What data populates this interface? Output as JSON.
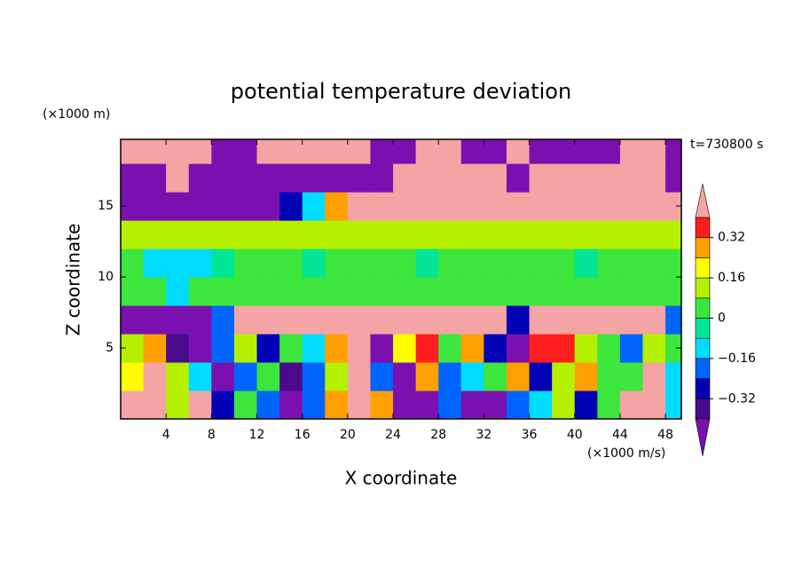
{
  "chart_data": {
    "type": "contour",
    "title": "potential temperature deviation",
    "x_label": "X coordinate",
    "x_unit": "(×1000 m/s)",
    "y_label": "Z coordinate",
    "y_unit": "(×1000 m)",
    "annotation": "t=730800 s",
    "xlim": [
      0,
      49.4
    ],
    "ylim": [
      0,
      19.7
    ],
    "xticks": [
      4,
      8,
      12,
      16,
      20,
      24,
      28,
      32,
      36,
      40,
      44,
      48
    ],
    "yticks": [
      5,
      10,
      15
    ],
    "x": [
      1,
      3,
      5,
      7,
      9,
      11,
      13,
      15,
      17,
      19,
      21,
      23,
      25,
      27,
      29,
      31,
      33,
      35,
      37,
      39,
      41,
      43,
      45,
      47,
      49
    ],
    "y": [
      1,
      3,
      5,
      7,
      9,
      11,
      13,
      15,
      17,
      19
    ],
    "z": [
      [
        0.5,
        0.5,
        0.1,
        0.5,
        -0.3,
        0.0,
        -0.2,
        -0.45,
        -0.2,
        0.3,
        0.5,
        0.3,
        -0.45,
        -0.45,
        -0.2,
        -0.45,
        -0.45,
        -0.2,
        -0.1,
        0.1,
        -0.3,
        0.0,
        0.5,
        0.5,
        -0.1
      ],
      [
        0.2,
        0.5,
        0.1,
        -0.1,
        -0.45,
        -0.2,
        0.0,
        -0.35,
        -0.2,
        0.1,
        0.5,
        -0.2,
        -0.45,
        0.3,
        -0.2,
        -0.1,
        0.0,
        0.3,
        -0.3,
        0.1,
        0.3,
        0.0,
        0.0,
        0.5,
        -0.1
      ],
      [
        0.1,
        0.3,
        -0.35,
        -0.45,
        -0.2,
        0.1,
        -0.3,
        0.0,
        -0.1,
        0.3,
        0.5,
        -0.45,
        0.2,
        0.35,
        0.0,
        0.3,
        -0.3,
        -0.45,
        0.35,
        0.35,
        0.1,
        0.0,
        -0.2,
        0.1,
        0.0
      ],
      [
        -0.45,
        -0.45,
        -0.45,
        -0.45,
        -0.2,
        0.5,
        0.5,
        0.5,
        0.5,
        0.5,
        0.5,
        0.5,
        0.5,
        0.5,
        0.5,
        0.5,
        0.5,
        -0.3,
        0.5,
        0.5,
        0.5,
        0.5,
        0.5,
        0.5,
        -0.2
      ],
      [
        0.05,
        0.05,
        -0.1,
        0.0,
        0.05,
        0.0,
        0.05,
        0.0,
        0.05,
        0.0,
        0.05,
        0.0,
        0.05,
        0.0,
        0.05,
        0.0,
        0.05,
        0.0,
        0.05,
        0.0,
        0.05,
        0.0,
        0.05,
        0.0,
        0.05
      ],
      [
        0.0,
        -0.1,
        -0.12,
        -0.1,
        -0.05,
        0.0,
        0.05,
        0.0,
        -0.05,
        0.0,
        0.05,
        0.0,
        0.0,
        -0.05,
        0.0,
        0.05,
        0.0,
        0.0,
        0.05,
        0.0,
        -0.05,
        0.0,
        0.05,
        0.0,
        0.0
      ],
      [
        0.1,
        0.1,
        0.12,
        0.1,
        0.1,
        0.12,
        0.1,
        0.1,
        0.12,
        0.1,
        0.1,
        0.12,
        0.1,
        0.1,
        0.12,
        0.1,
        0.1,
        0.12,
        0.1,
        0.1,
        0.12,
        0.1,
        0.1,
        0.12,
        0.1
      ],
      [
        -0.45,
        -0.45,
        -0.45,
        -0.45,
        -0.45,
        -0.45,
        -0.45,
        -0.3,
        -0.1,
        0.3,
        0.5,
        0.5,
        0.5,
        0.5,
        0.5,
        0.5,
        0.5,
        0.5,
        0.5,
        0.5,
        0.5,
        0.5,
        0.5,
        0.5,
        0.5
      ],
      [
        -0.45,
        -0.45,
        0.5,
        -0.45,
        -0.45,
        -0.45,
        -0.45,
        -0.45,
        -0.45,
        -0.45,
        -0.45,
        -0.45,
        0.5,
        0.5,
        0.5,
        0.5,
        0.5,
        -0.45,
        0.5,
        0.5,
        0.5,
        0.5,
        0.5,
        0.5,
        -0.45
      ],
      [
        0.5,
        0.5,
        0.5,
        0.5,
        -0.45,
        -0.45,
        0.5,
        0.5,
        0.5,
        0.5,
        0.5,
        -0.45,
        -0.45,
        0.5,
        0.5,
        -0.45,
        -0.45,
        0.5,
        -0.45,
        -0.45,
        -0.45,
        -0.45,
        0.5,
        0.5,
        -0.45
      ]
    ],
    "colorbar": {
      "levels": [
        -0.4,
        -0.32,
        -0.24,
        -0.16,
        -0.08,
        0,
        0.08,
        0.16,
        0.24,
        0.32,
        0.4
      ],
      "colors": [
        "#7a10b0",
        "#4a0a8c",
        "#0000b4",
        "#0064ff",
        "#00dcff",
        "#00e696",
        "#3ce63c",
        "#b4f000",
        "#ffff00",
        "#ffa000",
        "#ff1e1e",
        "#f4a4a4"
      ],
      "ticks": [
        {
          "value": -0.32,
          "label": "−0.32"
        },
        {
          "value": -0.16,
          "label": "−0.16"
        },
        0,
        0.16,
        0.32
      ]
    }
  }
}
